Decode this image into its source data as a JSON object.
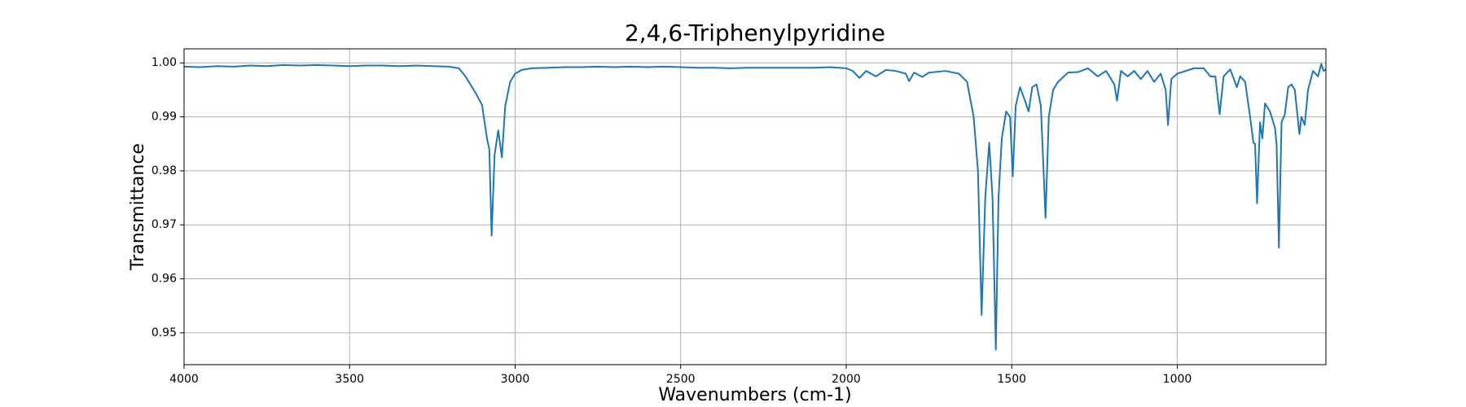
{
  "chart_data": {
    "type": "line",
    "title": "2,4,6-Triphenylpyridine",
    "xlabel": "Wavenumbers (cm-1)",
    "ylabel": "Transmittance",
    "color": "#1f77b4",
    "grid": true,
    "xlim": [
      4000,
      551
    ],
    "ylim": [
      0.9441,
      1.0026
    ],
    "xticks": [
      4000,
      3500,
      3000,
      2500,
      2000,
      1500,
      1000
    ],
    "yticks": [
      0.95,
      0.96,
      0.97,
      0.98,
      0.99,
      {
        "value": 1,
        "label": "1.00"
      }
    ],
    "x": [
      4000,
      3950,
      3900,
      3850,
      3800,
      3750,
      3700,
      3650,
      3600,
      3550,
      3500,
      3450,
      3400,
      3350,
      3300,
      3250,
      3200,
      3170,
      3150,
      3120,
      3100,
      3085,
      3078,
      3071,
      3062,
      3051,
      3040,
      3030,
      3015,
      3000,
      2980,
      2950,
      2900,
      2850,
      2800,
      2750,
      2700,
      2650,
      2600,
      2550,
      2500,
      2450,
      2400,
      2350,
      2300,
      2250,
      2200,
      2150,
      2100,
      2050,
      2000,
      1980,
      1960,
      1940,
      1910,
      1880,
      1850,
      1820,
      1810,
      1795,
      1770,
      1750,
      1700,
      1660,
      1635,
      1615,
      1602,
      1591,
      1580,
      1568,
      1558,
      1548,
      1540,
      1530,
      1517,
      1505,
      1497,
      1488,
      1475,
      1460,
      1449,
      1438,
      1425,
      1412,
      1398,
      1388,
      1375,
      1360,
      1330,
      1300,
      1270,
      1240,
      1215,
      1190,
      1182,
      1170,
      1150,
      1130,
      1110,
      1090,
      1070,
      1050,
      1035,
      1028,
      1018,
      1000,
      975,
      950,
      920,
      900,
      885,
      872,
      860,
      840,
      820,
      810,
      795,
      780,
      770,
      765,
      759,
      750,
      743,
      735,
      720,
      705,
      700,
      693,
      685,
      675,
      665,
      655,
      645,
      631,
      625,
      615,
      605,
      590,
      575,
      565,
      558,
      551
    ],
    "values": [
      0.9993,
      0.9992,
      0.9994,
      0.9993,
      0.9995,
      0.9994,
      0.9996,
      0.9995,
      0.9996,
      0.9995,
      0.9994,
      0.9995,
      0.9995,
      0.9994,
      0.9995,
      0.9994,
      0.9993,
      0.999,
      0.9975,
      0.9945,
      0.9922,
      0.986,
      0.984,
      0.968,
      0.983,
      0.9875,
      0.9825,
      0.992,
      0.9965,
      0.998,
      0.9987,
      0.999,
      0.9991,
      0.9992,
      0.9992,
      0.9993,
      0.9992,
      0.9993,
      0.9992,
      0.9993,
      0.9992,
      0.9991,
      0.9991,
      0.999,
      0.9991,
      0.9991,
      0.9991,
      0.9991,
      0.9991,
      0.9992,
      0.999,
      0.9985,
      0.9972,
      0.9985,
      0.9975,
      0.9987,
      0.9985,
      0.998,
      0.9966,
      0.9982,
      0.9974,
      0.9982,
      0.9985,
      0.998,
      0.9965,
      0.99,
      0.98,
      0.9533,
      0.975,
      0.9852,
      0.975,
      0.9469,
      0.975,
      0.986,
      0.991,
      0.99,
      0.979,
      0.992,
      0.9955,
      0.993,
      0.991,
      0.9955,
      0.996,
      0.992,
      0.9713,
      0.99,
      0.995,
      0.9965,
      0.9982,
      0.9983,
      0.999,
      0.9975,
      0.9985,
      0.996,
      0.993,
      0.9985,
      0.9975,
      0.9985,
      0.997,
      0.9985,
      0.9965,
      0.998,
      0.995,
      0.9885,
      0.997,
      0.998,
      0.9985,
      0.999,
      0.999,
      0.9975,
      0.9975,
      0.9905,
      0.9975,
      0.9988,
      0.9955,
      0.9975,
      0.9965,
      0.99,
      0.9852,
      0.985,
      0.974,
      0.989,
      0.986,
      0.9925,
      0.991,
      0.988,
      0.985,
      0.9658,
      0.989,
      0.9905,
      0.9955,
      0.996,
      0.995,
      0.9868,
      0.99,
      0.9885,
      0.995,
      0.9985,
      0.9975,
      0.9998,
      0.9985,
      0.9988
    ]
  }
}
